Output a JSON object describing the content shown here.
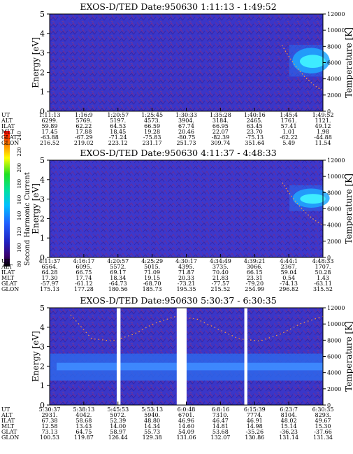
{
  "colorbar": {
    "label": "Second Harmonic Current",
    "ticks": [
      "80",
      "100",
      "120",
      "140",
      "160",
      "180",
      "200",
      "220",
      "240"
    ]
  },
  "row_labels": [
    "UT",
    "ALT",
    "ILAT",
    "MLT",
    "GLAT",
    "GLON"
  ],
  "chart_data": [
    {
      "type": "heatmap",
      "title": "EXOS-D/TED   Date:950630  1:11:13 - 1:49:52",
      "ylabel": "Energy [eV]",
      "y2label": "Temperature [K]",
      "ylim": [
        0,
        5
      ],
      "y2lim": [
        0,
        12000
      ],
      "yticks": [
        "0",
        "1",
        "2",
        "3",
        "4",
        "5"
      ],
      "y2ticks": [
        "0",
        "2000",
        "4000",
        "6000",
        "8000",
        "10000",
        "12000"
      ],
      "columns": [
        {
          "UT": "1:11:13",
          "ALT": "6299.",
          "ILAT": "59.89",
          "MLT": "17.45",
          "GLAT": "-63.88",
          "GLON": "216.52"
        },
        {
          "UT": "1:16:9",
          "ALT": "5769.",
          "ILAT": "62.22",
          "MLT": "17.88",
          "GLAT": "-67.29",
          "GLON": "219.02"
        },
        {
          "UT": "1:20:57",
          "ALT": "5197.",
          "ILAT": "64.53",
          "MLT": "18.45",
          "GLAT": "-71.24",
          "GLON": "223.12"
        },
        {
          "UT": "1:25:45",
          "ALT": "4573.",
          "ILAT": "66.59",
          "MLT": "19.28",
          "GLAT": "-75.83",
          "GLON": "231.17"
        },
        {
          "UT": "1:30:33",
          "ALT": "3904.",
          "ILAT": "67.74",
          "MLT": "20.46",
          "GLAT": "-80.75",
          "GLON": "251.73"
        },
        {
          "UT": "1:35:28",
          "ALT": "3184.",
          "ILAT": "66.95",
          "MLT": "22.07",
          "GLAT": "-82.39",
          "GLON": "309.74"
        },
        {
          "UT": "1:40:16",
          "ALT": "2465.",
          "ILAT": "63.45",
          "MLT": "23.70",
          "GLAT": "-75.13",
          "GLON": "351.64"
        },
        {
          "UT": "1:45:4",
          "ALT": "1761.",
          "ILAT": "57.41",
          "MLT": "1.01",
          "GLAT": "-62.22",
          "GLON": "5.49"
        },
        {
          "UT": "1:49:52",
          "ALT": "1121.",
          "ILAT": "49.12",
          "MLT": "1.98",
          "GLAT": "-44.88",
          "GLON": "11.54"
        }
      ],
      "features": [
        {
          "kind": "enhancement",
          "ut_range": [
            "1:45:4",
            "1:49:52"
          ],
          "energy_range_eV": [
            2.0,
            3.2
          ]
        }
      ]
    },
    {
      "type": "heatmap",
      "title": "EXOS-D/TED   Date:950630  4:11:37 - 4:48:33",
      "ylabel": "Energy [eV]",
      "y2label": "Temperature [K]",
      "ylim": [
        0,
        5
      ],
      "y2lim": [
        0,
        12000
      ],
      "yticks": [
        "0",
        "1",
        "2",
        "3",
        "4",
        "5"
      ],
      "y2ticks": [
        "0",
        "2000",
        "4000",
        "6000",
        "8000",
        "10000",
        "12000"
      ],
      "columns": [
        {
          "UT": "4:11:37",
          "ALT": "6564.",
          "ILAT": "64.28",
          "MLT": "17.30",
          "GLAT": "-57.97",
          "GLON": "175.13"
        },
        {
          "UT": "4:16:17",
          "ALT": "6095.",
          "ILAT": "66.75",
          "MLT": "17.74",
          "GLAT": "-61.12",
          "GLON": "177.28"
        },
        {
          "UT": "4:20:57",
          "ALT": "5572.",
          "ILAT": "69.17",
          "MLT": "18.34",
          "GLAT": "-64.73",
          "GLON": "180.56"
        },
        {
          "UT": "4:25:29",
          "ALT": "5015.",
          "ILAT": "71.09",
          "MLT": "19.15",
          "GLAT": "-68.70",
          "GLON": "185.73"
        },
        {
          "UT": "4:30:17",
          "ALT": "4395.",
          "ILAT": "71.87",
          "MLT": "20.33",
          "GLAT": "-73.21",
          "GLON": "195.35"
        },
        {
          "UT": "4:34:49",
          "ALT": "3735.",
          "ILAT": "70.40",
          "MLT": "21.83",
          "GLAT": "-77.57",
          "GLON": "215.52"
        },
        {
          "UT": "4:39:21",
          "ALT": "3066.",
          "ILAT": "66.15",
          "MLT": "23.31",
          "GLAT": "-79.20",
          "GLON": "254.99"
        },
        {
          "UT": "4:44:1",
          "ALT": "2367.",
          "ILAT": "59.04",
          "MLT": "0.54",
          "GLAT": "-74.13",
          "GLON": "296.82"
        },
        {
          "UT": "4:48:33",
          "ALT": "1707.",
          "ILAT": "50.28",
          "MLT": "1.43",
          "GLAT": "-63.11",
          "GLON": "315.52"
        }
      ],
      "features": [
        {
          "kind": "enhancement",
          "ut_range": [
            "4:44:1",
            "4:48:33"
          ],
          "energy_range_eV": [
            2.6,
            3.5
          ]
        }
      ]
    },
    {
      "type": "heatmap",
      "title": "EXOS-D/TED   Date:950630  5:30:37 - 6:30:35",
      "ylabel": "Energy [eV]",
      "y2label": "Temperature [K]",
      "ylim": [
        0,
        5
      ],
      "y2lim": [
        0,
        12000
      ],
      "yticks": [
        "0",
        "1",
        "2",
        "3",
        "4",
        "5"
      ],
      "y2ticks": [
        "0",
        "2000",
        "4000",
        "6000",
        "8000",
        "10000",
        "12000"
      ],
      "columns": [
        {
          "UT": "5:30:37",
          "ALT": "2931.",
          "ILAT": "67.38",
          "MLT": "12.58",
          "GLAT": "73.13",
          "GLON": "100.53"
        },
        {
          "UT": "5:38:13",
          "ALT": "4042.",
          "ILAT": "58.68",
          "MLT": "13.43",
          "GLAT": "64.75",
          "GLON": "119.87"
        },
        {
          "UT": "5:45:53",
          "ALT": "5072.",
          "ILAT": "52.39",
          "MLT": "14.00",
          "GLAT": "58.97",
          "GLON": "126.44"
        },
        {
          "UT": "5:53:13",
          "ALT": "5940.",
          "ILAT": "48.80",
          "MLT": "14.34",
          "GLAT": "55.73",
          "GLON": "129.38"
        },
        {
          "UT": "6:0:48",
          "ALT": "6701.",
          "ILAT": "46.96",
          "MLT": "14.60",
          "GLAT": "54.09",
          "GLON": "131.06"
        },
        {
          "UT": "6:8:16",
          "ALT": "7310.",
          "ILAT": "46.47",
          "MLT": "14.81",
          "GLAT": "53.68",
          "GLON": "132.07"
        },
        {
          "UT": "6:15:39",
          "ALT": "7774.",
          "ILAT": "46.91",
          "MLT": "14.98",
          "GLAT": "-35.26",
          "GLON": "130.86"
        },
        {
          "UT": "6:23:7",
          "ALT": "8104.",
          "ILAT": "48.02",
          "MLT": "15.14",
          "GLAT": "-36.23",
          "GLON": "131.14"
        },
        {
          "UT": "6:30:35",
          "ALT": "8293.",
          "ILAT": "49.67",
          "MLT": "15.30",
          "GLAT": "-37.66",
          "GLON": "131.34"
        }
      ],
      "features": [
        {
          "kind": "band",
          "ut_range": [
            "5:30:37",
            "6:30:35"
          ],
          "energy_range_eV": [
            1.4,
            2.5
          ]
        },
        {
          "kind": "data-gap",
          "ut_range": [
            "5:45:20",
            "5:46:10"
          ]
        },
        {
          "kind": "data-gap",
          "ut_range": [
            "5:58:30",
            "6:00:40"
          ]
        },
        {
          "kind": "data-gap",
          "ut_range": [
            "6:13:20",
            "6:14:00"
          ]
        }
      ]
    }
  ]
}
